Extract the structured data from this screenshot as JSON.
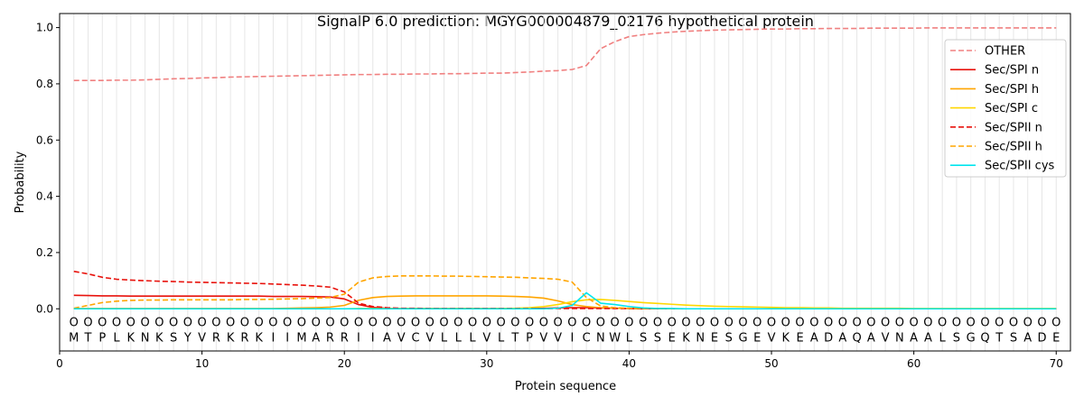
{
  "chart_data": {
    "type": "line",
    "title": "SignalP 6.0 prediction: MGYG000004879_02176 hypothetical protein",
    "xlabel": "Protein sequence",
    "ylabel": "Probability",
    "xlim": [
      0,
      71
    ],
    "ylim": [
      -0.15,
      1.05
    ],
    "xticks": [
      0,
      10,
      20,
      30,
      40,
      50,
      60,
      70
    ],
    "yticks": [
      "0.0",
      "0.2",
      "0.4",
      "0.6",
      "0.8",
      "1.0"
    ],
    "grid": "vertical lines at every residue",
    "legend_position": "top-right",
    "sequence": [
      "M",
      "T",
      "P",
      "L",
      "K",
      "N",
      "K",
      "S",
      "Y",
      "V",
      "R",
      "K",
      "R",
      "K",
      "I",
      "I",
      "M",
      "A",
      "R",
      "R",
      "I",
      "I",
      "A",
      "V",
      "C",
      "V",
      "L",
      "L",
      "L",
      "V",
      "L",
      "T",
      "P",
      "V",
      "V",
      "I",
      "C",
      "N",
      "W",
      "L",
      "S",
      "S",
      "E",
      "K",
      "N",
      "E",
      "S",
      "G",
      "E",
      "V",
      "K",
      "E",
      "A",
      "D",
      "A",
      "Q",
      "A",
      "V",
      "N",
      "A",
      "A",
      "L",
      "S",
      "G",
      "Q",
      "T",
      "S",
      "A",
      "D",
      "E"
    ],
    "position_label": "O",
    "series": [
      {
        "name": "OTHER",
        "color": "#f08080",
        "dash": "dashed",
        "values": [
          0.812,
          0.812,
          0.812,
          0.813,
          0.813,
          0.814,
          0.816,
          0.818,
          0.819,
          0.821,
          0.822,
          0.824,
          0.825,
          0.826,
          0.827,
          0.828,
          0.829,
          0.83,
          0.831,
          0.832,
          0.833,
          0.833,
          0.834,
          0.834,
          0.835,
          0.835,
          0.836,
          0.836,
          0.837,
          0.838,
          0.838,
          0.84,
          0.842,
          0.845,
          0.847,
          0.851,
          0.865,
          0.925,
          0.95,
          0.968,
          0.975,
          0.98,
          0.984,
          0.987,
          0.989,
          0.991,
          0.992,
          0.993,
          0.994,
          0.995,
          0.995,
          0.996,
          0.996,
          0.997,
          0.997,
          0.997,
          0.998,
          0.998,
          0.998,
          0.998,
          0.999,
          0.999,
          0.999,
          0.999,
          0.999,
          0.999,
          0.999,
          0.999,
          0.999,
          0.999
        ]
      },
      {
        "name": "Sec/SPI n",
        "color": "#e8120c",
        "dash": "solid",
        "values": [
          0.048,
          0.047,
          0.046,
          0.046,
          0.045,
          0.045,
          0.045,
          0.045,
          0.045,
          0.045,
          0.045,
          0.045,
          0.045,
          0.045,
          0.044,
          0.044,
          0.044,
          0.043,
          0.042,
          0.035,
          0.015,
          0.005,
          0.002,
          0.001,
          0.001,
          0.001,
          0.001,
          0.001,
          0.001,
          0.001,
          0.001,
          0.001,
          0.001,
          0.002,
          0.003,
          0.004,
          0.004,
          0.003,
          0.002,
          0.001,
          0,
          0,
          0,
          0,
          0,
          0,
          0,
          0,
          0,
          0,
          0,
          0,
          0,
          0,
          0,
          0,
          0,
          0,
          0,
          0,
          0,
          0,
          0,
          0,
          0,
          0,
          0,
          0,
          0,
          0
        ]
      },
      {
        "name": "Sec/SPI h",
        "color": "#ffa500",
        "dash": "solid",
        "values": [
          0.001,
          0.001,
          0.001,
          0.001,
          0.001,
          0.001,
          0.001,
          0.001,
          0.001,
          0.001,
          0.001,
          0.001,
          0.001,
          0.001,
          0.001,
          0.002,
          0.003,
          0.004,
          0.006,
          0.012,
          0.03,
          0.04,
          0.044,
          0.045,
          0.046,
          0.046,
          0.046,
          0.046,
          0.046,
          0.046,
          0.045,
          0.044,
          0.042,
          0.038,
          0.028,
          0.015,
          0.008,
          0.004,
          0.002,
          0.001,
          0.001,
          0.001,
          0,
          0,
          0,
          0,
          0,
          0,
          0,
          0,
          0,
          0,
          0,
          0,
          0,
          0,
          0,
          0,
          0,
          0,
          0,
          0,
          0,
          0,
          0,
          0,
          0,
          0,
          0,
          0
        ]
      },
      {
        "name": "Sec/SPI c",
        "color": "#ffd700",
        "dash": "solid",
        "values": [
          0,
          0,
          0,
          0,
          0,
          0,
          0,
          0,
          0,
          0,
          0,
          0,
          0,
          0,
          0,
          0,
          0,
          0,
          0,
          0,
          0.001,
          0.001,
          0.001,
          0.001,
          0.001,
          0.001,
          0.001,
          0.001,
          0.001,
          0.001,
          0.001,
          0.002,
          0.004,
          0.008,
          0.015,
          0.025,
          0.032,
          0.033,
          0.03,
          0.026,
          0.022,
          0.019,
          0.016,
          0.013,
          0.011,
          0.009,
          0.008,
          0.007,
          0.006,
          0.005,
          0.004,
          0.004,
          0.003,
          0.003,
          0.002,
          0.002,
          0.002,
          0.002,
          0.002,
          0.001,
          0.001,
          0.001,
          0.001,
          0.001,
          0.001,
          0.001,
          0.001,
          0.001,
          0.001,
          0.001
        ]
      },
      {
        "name": "Sec/SPII n",
        "color": "#e8120c",
        "dash": "dashed",
        "values": [
          0.133,
          0.124,
          0.112,
          0.105,
          0.102,
          0.1,
          0.098,
          0.097,
          0.095,
          0.094,
          0.093,
          0.092,
          0.091,
          0.09,
          0.088,
          0.086,
          0.084,
          0.081,
          0.077,
          0.06,
          0.02,
          0.008,
          0.004,
          0.002,
          0.002,
          0.001,
          0.001,
          0.001,
          0.001,
          0.001,
          0.001,
          0.001,
          0.001,
          0.001,
          0.001,
          0.001,
          0.001,
          0.001,
          0.001,
          0.001,
          0,
          0,
          0,
          0,
          0,
          0,
          0,
          0,
          0,
          0,
          0,
          0,
          0,
          0,
          0,
          0,
          0,
          0,
          0,
          0,
          0,
          0,
          0,
          0,
          0,
          0,
          0,
          0,
          0,
          0
        ]
      },
      {
        "name": "Sec/SPII h",
        "color": "#ffa500",
        "dash": "dashed",
        "values": [
          0.002,
          0.012,
          0.022,
          0.027,
          0.03,
          0.031,
          0.031,
          0.032,
          0.032,
          0.032,
          0.032,
          0.032,
          0.033,
          0.033,
          0.034,
          0.035,
          0.036,
          0.038,
          0.04,
          0.052,
          0.095,
          0.11,
          0.115,
          0.117,
          0.117,
          0.117,
          0.116,
          0.116,
          0.115,
          0.114,
          0.113,
          0.112,
          0.11,
          0.108,
          0.105,
          0.095,
          0.04,
          0.01,
          0.004,
          0.002,
          0.001,
          0.001,
          0,
          0,
          0,
          0,
          0,
          0,
          0,
          0,
          0,
          0,
          0,
          0,
          0,
          0,
          0,
          0,
          0,
          0,
          0,
          0,
          0,
          0,
          0,
          0,
          0,
          0,
          0,
          0
        ]
      },
      {
        "name": "Sec/SPII cys",
        "color": "#00e5ee",
        "dash": "solid",
        "values": [
          0,
          0,
          0,
          0,
          0,
          0,
          0,
          0,
          0,
          0,
          0,
          0,
          0,
          0,
          0,
          0,
          0,
          0,
          0,
          0,
          0,
          0,
          0,
          0,
          0,
          0,
          0,
          0,
          0,
          0,
          0,
          0,
          0,
          0,
          0.002,
          0.012,
          0.057,
          0.02,
          0.015,
          0.008,
          0.003,
          0.001,
          0.001,
          0,
          0,
          0,
          0,
          0,
          0,
          0,
          0,
          0,
          0,
          0,
          0,
          0,
          0,
          0,
          0,
          0,
          0,
          0,
          0,
          0,
          0,
          0,
          0,
          0,
          0,
          0
        ]
      }
    ]
  }
}
